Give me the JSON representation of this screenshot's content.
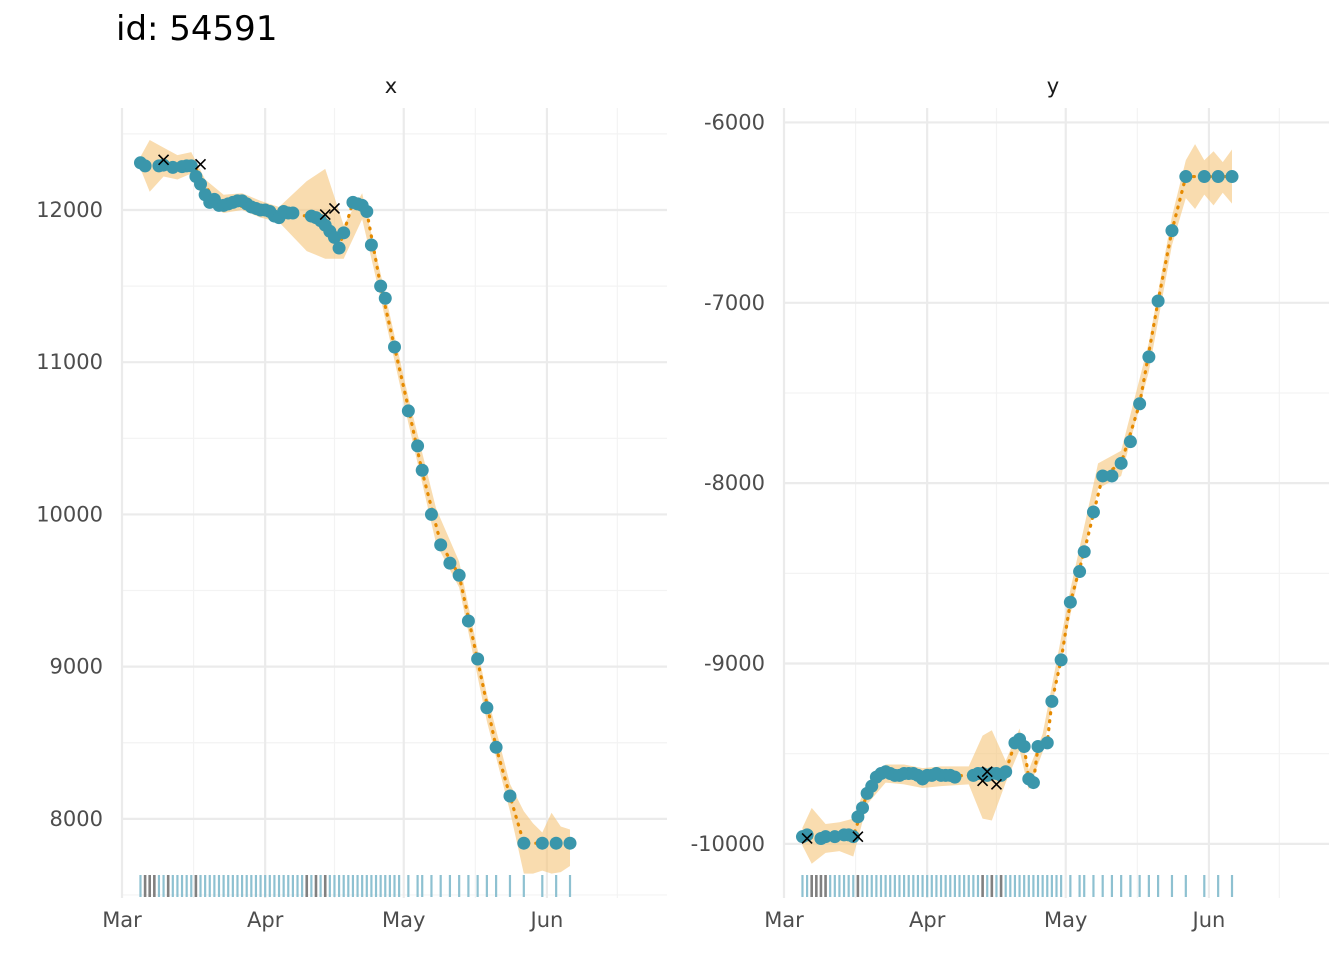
{
  "title": "id: 54591",
  "colors": {
    "point": "#3a96ab",
    "line": "#e68a00",
    "band": "#f5c57a",
    "cross": "#000000",
    "rug_normal": "#8ec1d1",
    "rug_flagged": "#808080"
  },
  "chart_data": [
    {
      "type": "scatter",
      "facet": "x",
      "ylim": [
        7480,
        12670
      ],
      "yticks": [
        8000,
        9000,
        10000,
        11000,
        12000
      ],
      "ytick_labels": [
        "8000",
        "9000",
        "10000",
        "11000",
        "12000"
      ],
      "xlim": [
        0,
        118
      ],
      "xticks": [
        0,
        31,
        61,
        92
      ],
      "xtick_labels": [
        "Mar",
        "Apr",
        "May",
        "Jun"
      ],
      "points": [
        [
          4,
          12310
        ],
        [
          5,
          12290
        ],
        [
          8,
          12290
        ],
        [
          9,
          12295
        ],
        [
          11,
          12280
        ],
        [
          13,
          12285
        ],
        [
          14,
          12290
        ],
        [
          15,
          12290
        ],
        [
          16,
          12220
        ],
        [
          17,
          12170
        ],
        [
          18,
          12100
        ],
        [
          19,
          12050
        ],
        [
          20,
          12070
        ],
        [
          21,
          12030
        ],
        [
          22,
          12030
        ],
        [
          23,
          12040
        ],
        [
          24,
          12050
        ],
        [
          25,
          12060
        ],
        [
          26,
          12060
        ],
        [
          27,
          12040
        ],
        [
          28,
          12020
        ],
        [
          29,
          12010
        ],
        [
          30,
          12000
        ],
        [
          31,
          12000
        ],
        [
          32,
          11990
        ],
        [
          33,
          11960
        ],
        [
          34,
          11950
        ],
        [
          35,
          11990
        ],
        [
          36,
          11980
        ],
        [
          37,
          11980
        ],
        [
          41,
          11960
        ],
        [
          42,
          11950
        ],
        [
          43,
          11930
        ],
        [
          44,
          11900
        ],
        [
          45,
          11860
        ],
        [
          46,
          11820
        ],
        [
          47,
          11750
        ],
        [
          48,
          11850
        ],
        [
          50,
          12050
        ],
        [
          51,
          12040
        ],
        [
          52,
          12030
        ],
        [
          53,
          11990
        ],
        [
          54,
          11770
        ],
        [
          56,
          11500
        ],
        [
          57,
          11420
        ],
        [
          59,
          11100
        ],
        [
          62,
          10680
        ],
        [
          64,
          10450
        ],
        [
          65,
          10290
        ],
        [
          67,
          10000
        ],
        [
          69,
          9800
        ],
        [
          71,
          9680
        ],
        [
          73,
          9600
        ],
        [
          75,
          9300
        ],
        [
          77,
          9050
        ],
        [
          79,
          8730
        ],
        [
          81,
          8470
        ],
        [
          84,
          8150
        ],
        [
          87,
          7840
        ],
        [
          91,
          7840
        ],
        [
          94,
          7840
        ],
        [
          97,
          7840
        ]
      ],
      "crosses": [
        [
          9,
          12330
        ],
        [
          17,
          12300
        ],
        [
          44,
          11970
        ],
        [
          46,
          12010
        ]
      ],
      "line": [
        [
          4,
          12310
        ],
        [
          8,
          12290
        ],
        [
          16,
          12270
        ],
        [
          20,
          12060
        ],
        [
          30,
          12000
        ],
        [
          40,
          11960
        ],
        [
          44,
          11900
        ],
        [
          47,
          11760
        ],
        [
          48,
          11850
        ],
        [
          50,
          12050
        ],
        [
          53,
          11990
        ],
        [
          56,
          11500
        ],
        [
          59,
          11100
        ],
        [
          62,
          10700
        ],
        [
          65,
          10280
        ],
        [
          69,
          9810
        ],
        [
          73,
          9600
        ],
        [
          77,
          9040
        ],
        [
          81,
          8470
        ],
        [
          84,
          8150
        ],
        [
          87,
          7840
        ],
        [
          97,
          7840
        ]
      ],
      "band": [
        [
          4,
          12270,
          12350
        ],
        [
          6,
          12120,
          12460
        ],
        [
          9,
          12220,
          12410
        ],
        [
          12,
          12200,
          12360
        ],
        [
          15,
          12240,
          12380
        ],
        [
          18,
          12050,
          12200
        ],
        [
          22,
          11980,
          12100
        ],
        [
          26,
          12000,
          12110
        ],
        [
          30,
          11950,
          12060
        ],
        [
          34,
          11920,
          12020
        ],
        [
          40,
          11730,
          12190
        ],
        [
          44,
          11680,
          12270
        ],
        [
          48,
          11680,
          11900
        ],
        [
          52,
          11940,
          12110
        ],
        [
          56,
          11420,
          11580
        ],
        [
          62,
          10600,
          10770
        ],
        [
          68,
          9810,
          10040
        ],
        [
          73,
          9520,
          9690
        ],
        [
          79,
          8640,
          8820
        ],
        [
          84,
          8050,
          8230
        ],
        [
          87,
          7640,
          8050
        ],
        [
          89,
          7640,
          7970
        ],
        [
          91,
          7660,
          7910
        ],
        [
          93,
          7640,
          8040
        ],
        [
          95,
          7650,
          7950
        ],
        [
          97,
          7690,
          7930
        ]
      ],
      "rug_flagged": [
        5,
        6,
        7,
        10,
        16,
        40,
        42,
        44
      ],
      "rug": [
        4,
        5,
        6,
        7,
        8,
        9,
        10,
        11,
        12,
        13,
        14,
        15,
        16,
        17,
        18,
        19,
        20,
        21,
        22,
        23,
        24,
        25,
        26,
        27,
        28,
        29,
        30,
        31,
        32,
        33,
        34,
        35,
        36,
        37,
        38,
        39,
        40,
        41,
        42,
        43,
        44,
        45,
        46,
        47,
        48,
        49,
        50,
        51,
        52,
        53,
        54,
        55,
        56,
        57,
        58,
        59,
        60,
        62,
        64,
        65,
        67,
        69,
        71,
        73,
        75,
        77,
        79,
        81,
        84,
        87,
        91,
        94,
        97
      ]
    },
    {
      "type": "scatter",
      "facet": "y",
      "ylim": [
        -10300,
        -5920
      ],
      "yticks": [
        -10000,
        -9000,
        -8000,
        -7000,
        -6000
      ],
      "ytick_labels": [
        "-10000",
        "-9000",
        "-8000",
        "-7000",
        "-6000"
      ],
      "xlim": [
        0,
        118
      ],
      "xticks": [
        0,
        31,
        61,
        92
      ],
      "xtick_labels": [
        "Mar",
        "Apr",
        "May",
        "Jun"
      ],
      "points": [
        [
          4,
          -9960
        ],
        [
          5,
          -9950
        ],
        [
          8,
          -9970
        ],
        [
          9,
          -9960
        ],
        [
          11,
          -9960
        ],
        [
          13,
          -9950
        ],
        [
          14,
          -9950
        ],
        [
          15,
          -9960
        ],
        [
          16,
          -9850
        ],
        [
          17,
          -9800
        ],
        [
          18,
          -9720
        ],
        [
          19,
          -9680
        ],
        [
          20,
          -9630
        ],
        [
          21,
          -9610
        ],
        [
          22,
          -9600
        ],
        [
          23,
          -9610
        ],
        [
          24,
          -9620
        ],
        [
          25,
          -9620
        ],
        [
          26,
          -9610
        ],
        [
          27,
          -9610
        ],
        [
          28,
          -9610
        ],
        [
          29,
          -9620
        ],
        [
          30,
          -9640
        ],
        [
          31,
          -9620
        ],
        [
          32,
          -9620
        ],
        [
          33,
          -9610
        ],
        [
          34,
          -9620
        ],
        [
          35,
          -9620
        ],
        [
          36,
          -9620
        ],
        [
          37,
          -9630
        ],
        [
          41,
          -9620
        ],
        [
          42,
          -9610
        ],
        [
          43,
          -9610
        ],
        [
          44,
          -9620
        ],
        [
          45,
          -9610
        ],
        [
          46,
          -9610
        ],
        [
          47,
          -9620
        ],
        [
          48,
          -9600
        ],
        [
          50,
          -9440
        ],
        [
          51,
          -9420
        ],
        [
          52,
          -9460
        ],
        [
          53,
          -9640
        ],
        [
          54,
          -9660
        ],
        [
          55,
          -9460
        ],
        [
          57,
          -9440
        ],
        [
          58,
          -9210
        ],
        [
          60,
          -8980
        ],
        [
          62,
          -8660
        ],
        [
          64,
          -8490
        ],
        [
          65,
          -8380
        ],
        [
          67,
          -8160
        ],
        [
          69,
          -7960
        ],
        [
          71,
          -7960
        ],
        [
          73,
          -7890
        ],
        [
          75,
          -7770
        ],
        [
          77,
          -7560
        ],
        [
          79,
          -7300
        ],
        [
          81,
          -6990
        ],
        [
          84,
          -6600
        ],
        [
          87,
          -6300
        ],
        [
          91,
          -6300
        ],
        [
          94,
          -6300
        ],
        [
          97,
          -6300
        ]
      ],
      "crosses": [
        [
          5,
          -9970
        ],
        [
          16,
          -9960
        ],
        [
          43,
          -9650
        ],
        [
          44,
          -9600
        ],
        [
          46,
          -9670
        ]
      ],
      "line": [
        [
          4,
          -9960
        ],
        [
          8,
          -9970
        ],
        [
          15,
          -9960
        ],
        [
          18,
          -9720
        ],
        [
          22,
          -9600
        ],
        [
          30,
          -9630
        ],
        [
          40,
          -9620
        ],
        [
          48,
          -9600
        ],
        [
          50,
          -9440
        ],
        [
          52,
          -9460
        ],
        [
          53,
          -9640
        ],
        [
          54,
          -9660
        ],
        [
          55,
          -9460
        ],
        [
          57,
          -9440
        ],
        [
          58,
          -9210
        ],
        [
          60,
          -8980
        ],
        [
          62,
          -8660
        ],
        [
          65,
          -8380
        ],
        [
          69,
          -7960
        ],
        [
          73,
          -7890
        ],
        [
          77,
          -7560
        ],
        [
          81,
          -6990
        ],
        [
          84,
          -6600
        ],
        [
          87,
          -6300
        ],
        [
          97,
          -6300
        ]
      ],
      "band": [
        [
          4,
          -10010,
          -9910
        ],
        [
          6,
          -10110,
          -9800
        ],
        [
          9,
          -10050,
          -9890
        ],
        [
          12,
          -10040,
          -9880
        ],
        [
          15,
          -10070,
          -9860
        ],
        [
          18,
          -9780,
          -9660
        ],
        [
          22,
          -9660,
          -9560
        ],
        [
          26,
          -9670,
          -9560
        ],
        [
          30,
          -9690,
          -9580
        ],
        [
          34,
          -9680,
          -9570
        ],
        [
          40,
          -9670,
          -9570
        ],
        [
          43,
          -9860,
          -9400
        ],
        [
          45,
          -9870,
          -9370
        ],
        [
          48,
          -9660,
          -9540
        ],
        [
          51,
          -9480,
          -9360
        ],
        [
          53,
          -9700,
          -9590
        ],
        [
          56,
          -9490,
          -9390
        ],
        [
          62,
          -8730,
          -8590
        ],
        [
          68,
          -8030,
          -7890
        ],
        [
          73,
          -7960,
          -7820
        ],
        [
          79,
          -7380,
          -7220
        ],
        [
          84,
          -6680,
          -6520
        ],
        [
          87,
          -6420,
          -6210
        ],
        [
          89,
          -6480,
          -6120
        ],
        [
          91,
          -6400,
          -6210
        ],
        [
          93,
          -6460,
          -6160
        ],
        [
          95,
          -6390,
          -6220
        ],
        [
          97,
          -6450,
          -6150
        ]
      ],
      "rug_flagged": [
        6,
        7,
        8,
        9,
        16,
        43,
        45,
        47
      ],
      "rug": [
        4,
        5,
        6,
        7,
        8,
        9,
        10,
        11,
        12,
        13,
        14,
        15,
        16,
        17,
        18,
        19,
        20,
        21,
        22,
        23,
        24,
        25,
        26,
        27,
        28,
        29,
        30,
        31,
        32,
        33,
        34,
        35,
        36,
        37,
        38,
        39,
        40,
        41,
        42,
        43,
        44,
        45,
        46,
        47,
        48,
        49,
        50,
        51,
        52,
        53,
        54,
        55,
        56,
        57,
        58,
        59,
        60,
        62,
        64,
        65,
        67,
        69,
        71,
        73,
        75,
        77,
        79,
        81,
        84,
        87,
        91,
        94,
        97
      ]
    }
  ]
}
